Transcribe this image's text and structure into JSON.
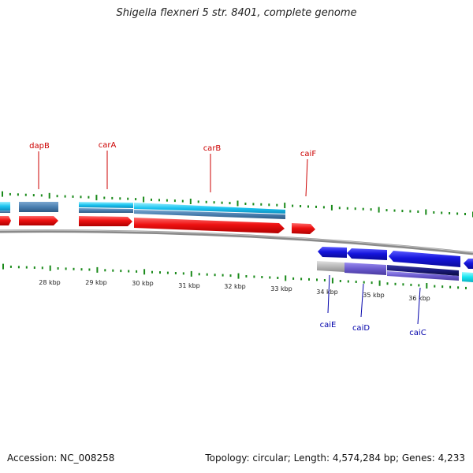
{
  "title": "Shigella flexneri 5 str. 8401, complete genome",
  "accession": "Accession: NC_008258",
  "summary": "Topology: circular; Length: 4,574,284 bp; Genes: 4,233",
  "ruler_labels": [
    {
      "label": "28 kbp",
      "kbp": 28
    },
    {
      "label": "29 kbp",
      "kbp": 29
    },
    {
      "label": "30 kbp",
      "kbp": 30
    },
    {
      "label": "31 kbp",
      "kbp": 31
    },
    {
      "label": "32 kbp",
      "kbp": 32
    },
    {
      "label": "33 kbp",
      "kbp": 33
    },
    {
      "label": "34 kbp",
      "kbp": 34
    },
    {
      "label": "35 kbp",
      "kbp": 35
    },
    {
      "label": "36 kbp",
      "kbp": 36
    }
  ],
  "genes": [
    {
      "name": "dapB",
      "strand": "forward",
      "start_kbp": 27.7,
      "end_kbp": 28.15
    },
    {
      "name": "carA",
      "strand": "forward",
      "start_kbp": 28.8,
      "end_kbp": 29.95
    },
    {
      "name": "carB",
      "strand": "forward",
      "start_kbp": 29.95,
      "end_kbp": 33.2
    },
    {
      "name": "caiF",
      "strand": "forward",
      "start_kbp": 33.35,
      "end_kbp": 33.75
    },
    {
      "name": "caiE",
      "strand": "reverse",
      "start_kbp": 33.85,
      "end_kbp": 34.45
    },
    {
      "name": "caiD",
      "strand": "reverse",
      "start_kbp": 34.45,
      "end_kbp": 35.3
    },
    {
      "name": "caiC",
      "strand": "reverse",
      "start_kbp": 35.3,
      "end_kbp": 36.85
    }
  ],
  "colors": {
    "forward_cds": "#ee1111",
    "reverse_cds": "#1515dd",
    "forward_feature": "#1cc4f0",
    "forward_feature_alt": "#4a7fb0",
    "reverse_feature": "#6a5acd",
    "reverse_feature_dark": "#1a1a7a",
    "reverse_feature_grey": "#b0b0b0",
    "reverse_feature_cyan": "#18e6f0",
    "backbone": "#8a8a8a",
    "ticks": "#1a8a1a",
    "forward_label": "#cc0000",
    "reverse_label": "#0000aa"
  }
}
